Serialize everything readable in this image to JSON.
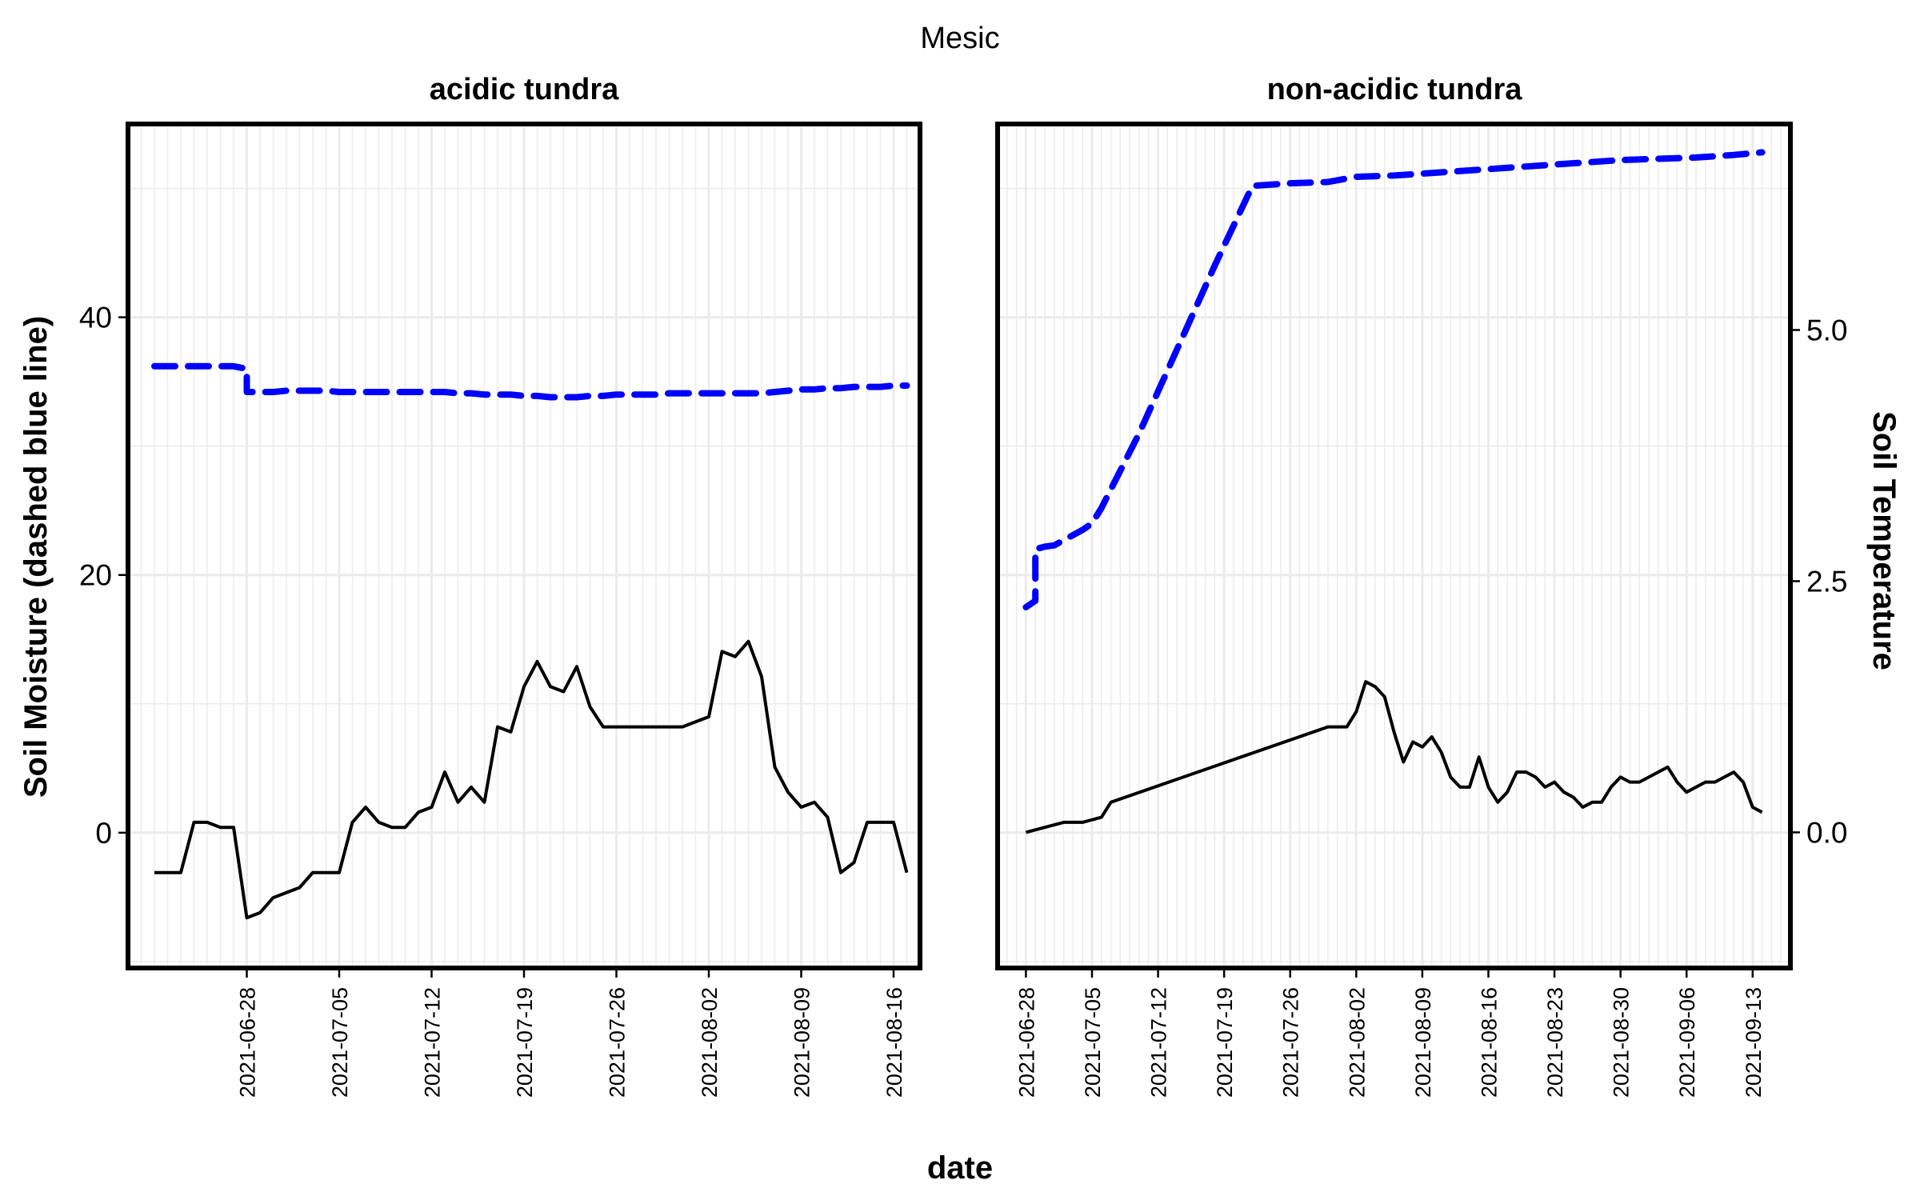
{
  "chart_data": {
    "type": "line",
    "title": "Mesic",
    "xlabel": "date",
    "ylabel": "Soil Moisture (dashed blue line)",
    "y2label": "Soil Temperature",
    "colors": {
      "moisture": "#0000ff",
      "temperature": "#000000",
      "grid": "#ebebeb"
    },
    "ylim": [
      -10.5,
      55
    ],
    "y_ticks": [
      0,
      20,
      40
    ],
    "y2lim": [
      -1.35,
      7.05
    ],
    "y2_ticks": [
      0.0,
      2.5,
      5.0
    ],
    "y2_tick_labels": [
      "0.0",
      "2.5",
      "5.0"
    ],
    "grid": true,
    "panels": [
      {
        "facet": "acidic tundra",
        "xlim": [
          "2021-06-19",
          "2021-08-18"
        ],
        "x_ticks": [
          "2021-06-28",
          "2021-07-05",
          "2021-07-12",
          "2021-07-19",
          "2021-07-26",
          "2021-08-02",
          "2021-08-09",
          "2021-08-16"
        ],
        "series": [
          {
            "name": "Soil Moisture",
            "style": "dashed",
            "color": "#0000ff",
            "x": [
              "2021-06-21",
              "2021-06-22",
              "2021-06-23",
              "2021-06-24",
              "2021-06-25",
              "2021-06-26",
              "2021-06-27",
              "2021-06-28",
              "2021-06-28",
              "2021-06-29",
              "2021-06-30",
              "2021-07-01",
              "2021-07-02",
              "2021-07-03",
              "2021-07-04",
              "2021-07-05",
              "2021-07-06",
              "2021-07-07",
              "2021-07-08",
              "2021-07-09",
              "2021-07-10",
              "2021-07-11",
              "2021-07-12",
              "2021-07-13",
              "2021-07-14",
              "2021-07-15",
              "2021-07-16",
              "2021-07-17",
              "2021-07-18",
              "2021-07-19",
              "2021-07-20",
              "2021-07-21",
              "2021-07-22",
              "2021-07-23",
              "2021-07-24",
              "2021-07-25",
              "2021-07-26",
              "2021-07-27",
              "2021-07-28",
              "2021-07-29",
              "2021-07-30",
              "2021-07-31",
              "2021-08-01",
              "2021-08-02",
              "2021-08-03",
              "2021-08-04",
              "2021-08-05",
              "2021-08-06",
              "2021-08-07",
              "2021-08-08",
              "2021-08-09",
              "2021-08-10",
              "2021-08-11",
              "2021-08-12",
              "2021-08-13",
              "2021-08-14",
              "2021-08-15",
              "2021-08-16",
              "2021-08-17"
            ],
            "values": [
              36.2,
              36.2,
              36.2,
              36.2,
              36.2,
              36.2,
              36.2,
              36.0,
              34.2,
              34.2,
              34.2,
              34.3,
              34.3,
              34.3,
              34.3,
              34.2,
              34.2,
              34.2,
              34.2,
              34.2,
              34.2,
              34.2,
              34.2,
              34.2,
              34.1,
              34.1,
              34.0,
              34.0,
              34.0,
              33.9,
              33.9,
              33.8,
              33.8,
              33.8,
              33.9,
              33.9,
              34.0,
              34.0,
              34.0,
              34.0,
              34.1,
              34.1,
              34.1,
              34.1,
              34.1,
              34.1,
              34.1,
              34.1,
              34.2,
              34.3,
              34.4,
              34.4,
              34.5,
              34.5,
              34.6,
              34.6,
              34.6,
              34.7,
              34.7
            ]
          },
          {
            "name": "Soil Temperature",
            "style": "solid",
            "color": "#000000",
            "x": [
              "2021-06-21",
              "2021-06-22",
              "2021-06-23",
              "2021-06-24",
              "2021-06-25",
              "2021-06-26",
              "2021-06-27",
              "2021-06-28",
              "2021-06-29",
              "2021-06-30",
              "2021-07-01",
              "2021-07-02",
              "2021-07-03",
              "2021-07-04",
              "2021-07-05",
              "2021-07-06",
              "2021-07-07",
              "2021-07-08",
              "2021-07-09",
              "2021-07-10",
              "2021-07-11",
              "2021-07-12",
              "2021-07-13",
              "2021-07-14",
              "2021-07-15",
              "2021-07-16",
              "2021-07-17",
              "2021-07-18",
              "2021-07-19",
              "2021-07-20",
              "2021-07-21",
              "2021-07-22",
              "2021-07-23",
              "2021-07-24",
              "2021-07-25",
              "2021-07-26",
              "2021-07-27",
              "2021-07-28",
              "2021-07-29",
              "2021-07-30",
              "2021-07-31",
              "2021-08-01",
              "2021-08-02",
              "2021-08-03",
              "2021-08-04",
              "2021-08-05",
              "2021-08-06",
              "2021-08-07",
              "2021-08-08",
              "2021-08-09",
              "2021-08-10",
              "2021-08-11",
              "2021-08-12",
              "2021-08-13",
              "2021-08-14",
              "2021-08-15",
              "2021-08-16",
              "2021-08-17"
            ],
            "values": [
              -0.4,
              -0.4,
              -0.4,
              0.1,
              0.1,
              0.05,
              0.05,
              -0.85,
              -0.8,
              -0.65,
              -0.6,
              -0.55,
              -0.4,
              -0.4,
              -0.4,
              0.1,
              0.25,
              0.1,
              0.05,
              0.05,
              0.2,
              0.25,
              0.6,
              0.3,
              0.45,
              0.3,
              1.05,
              1.0,
              1.45,
              1.7,
              1.45,
              1.4,
              1.65,
              1.25,
              1.05,
              1.05,
              1.05,
              1.05,
              1.05,
              1.05,
              1.05,
              1.1,
              1.15,
              1.8,
              1.75,
              1.9,
              1.55,
              0.65,
              0.4,
              0.25,
              0.3,
              0.15,
              -0.4,
              -0.3,
              0.1,
              0.1,
              0.1,
              -0.4
            ]
          }
        ]
      },
      {
        "facet": "non-acidic tundra",
        "xlim": [
          "2021-06-25",
          "2021-09-17"
        ],
        "x_ticks": [
          "2021-06-28",
          "2021-07-05",
          "2021-07-12",
          "2021-07-19",
          "2021-07-26",
          "2021-08-02",
          "2021-08-09",
          "2021-08-16",
          "2021-08-23",
          "2021-08-30",
          "2021-09-06",
          "2021-09-13"
        ],
        "series": [
          {
            "name": "Soil Moisture",
            "style": "dashed",
            "color": "#0000ff",
            "x": [
              "2021-06-28",
              "2021-06-29",
              "2021-06-29",
              "2021-06-30",
              "2021-07-01",
              "2021-07-04",
              "2021-07-05",
              "2021-07-06",
              "2021-07-10",
              "2021-07-14",
              "2021-07-18",
              "2021-07-22",
              "2021-07-26",
              "2021-07-30",
              "2021-08-02",
              "2021-08-06",
              "2021-08-10",
              "2021-08-14",
              "2021-08-18",
              "2021-08-22",
              "2021-08-26",
              "2021-08-30",
              "2021-09-03",
              "2021-09-07",
              "2021-09-11",
              "2021-09-14"
            ],
            "values": [
              17.5,
              18.0,
              22.0,
              22.2,
              22.3,
              23.5,
              24.0,
              25.2,
              31.0,
              37.5,
              44.0,
              50.2,
              50.4,
              50.5,
              50.9,
              51.0,
              51.2,
              51.4,
              51.6,
              51.8,
              52.0,
              52.2,
              52.3,
              52.4,
              52.6,
              52.8
            ]
          },
          {
            "name": "Soil Temperature",
            "style": "solid",
            "color": "#000000",
            "x": [
              "2021-06-28",
              "2021-06-30",
              "2021-07-02",
              "2021-07-04",
              "2021-07-06",
              "2021-07-07",
              "2021-07-30",
              "2021-07-31",
              "2021-08-01",
              "2021-08-02",
              "2021-08-03",
              "2021-08-04",
              "2021-08-05",
              "2021-08-06",
              "2021-08-07",
              "2021-08-08",
              "2021-08-09",
              "2021-08-10",
              "2021-08-11",
              "2021-08-12",
              "2021-08-13",
              "2021-08-14",
              "2021-08-15",
              "2021-08-16",
              "2021-08-17",
              "2021-08-18",
              "2021-08-19",
              "2021-08-20",
              "2021-08-21",
              "2021-08-22",
              "2021-08-23",
              "2021-08-24",
              "2021-08-25",
              "2021-08-26",
              "2021-08-27",
              "2021-08-28",
              "2021-08-29",
              "2021-08-30",
              "2021-08-31",
              "2021-09-01",
              "2021-09-02",
              "2021-09-03",
              "2021-09-04",
              "2021-09-05",
              "2021-09-06",
              "2021-09-07",
              "2021-09-08",
              "2021-09-09",
              "2021-09-10",
              "2021-09-11",
              "2021-09-12",
              "2021-09-13",
              "2021-09-14"
            ],
            "values": [
              0.0,
              0.05,
              0.1,
              0.1,
              0.15,
              0.3,
              1.05,
              1.05,
              1.05,
              1.2,
              1.5,
              1.45,
              1.35,
              1.0,
              0.7,
              0.9,
              0.85,
              0.95,
              0.8,
              0.55,
              0.45,
              0.45,
              0.75,
              0.45,
              0.3,
              0.4,
              0.6,
              0.6,
              0.55,
              0.45,
              0.5,
              0.4,
              0.35,
              0.25,
              0.3,
              0.3,
              0.45,
              0.55,
              0.5,
              0.5,
              0.55,
              0.6,
              0.65,
              0.5,
              0.4,
              0.45,
              0.5,
              0.5,
              0.55,
              0.6,
              0.5,
              0.25,
              0.2
            ]
          }
        ]
      }
    ]
  }
}
